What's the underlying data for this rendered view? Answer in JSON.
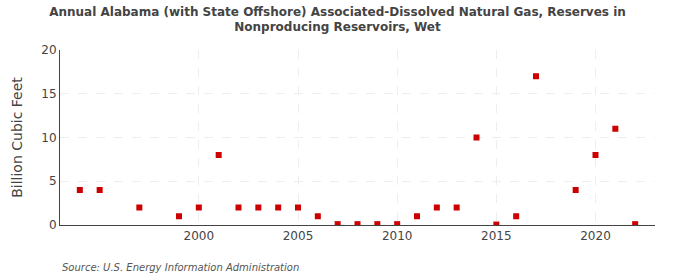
{
  "chart_data": {
    "type": "scatter",
    "title": "Annual Alabama (with State Offshore) Associated-Dissolved Natural Gas, Reserves in\nNonproducing Reservoirs, Wet",
    "y_label": "Billion Cubic Feet",
    "annotations": [
      "Source: U.S. Energy Information Administration"
    ],
    "x": [
      1994,
      1995,
      1997,
      1999,
      2000,
      2001,
      2002,
      2003,
      2004,
      2005,
      2006,
      2007,
      2008,
      2009,
      2010,
      2011,
      2012,
      2013,
      2014,
      2015,
      2016,
      2017,
      2019,
      2020,
      2021,
      2022
    ],
    "values": [
      4.0,
      4.0,
      2.0,
      1.0,
      2.0,
      8.0,
      2.0,
      2.0,
      2.0,
      2.0,
      1.0,
      0.1,
      0.1,
      0.1,
      0.1,
      1.0,
      2.0,
      2.0,
      10.0,
      0.05,
      1.0,
      17.0,
      4.0,
      8.0,
      11.0,
      0.1
    ],
    "color": "#cc0000",
    "marker": "square",
    "xlim": [
      1993,
      2023
    ],
    "ylim": [
      0,
      20
    ],
    "xticks": [
      2000,
      2005,
      2010,
      2015,
      2020
    ],
    "yticks": [
      0,
      5,
      10,
      15,
      20
    ],
    "grid": true
  }
}
